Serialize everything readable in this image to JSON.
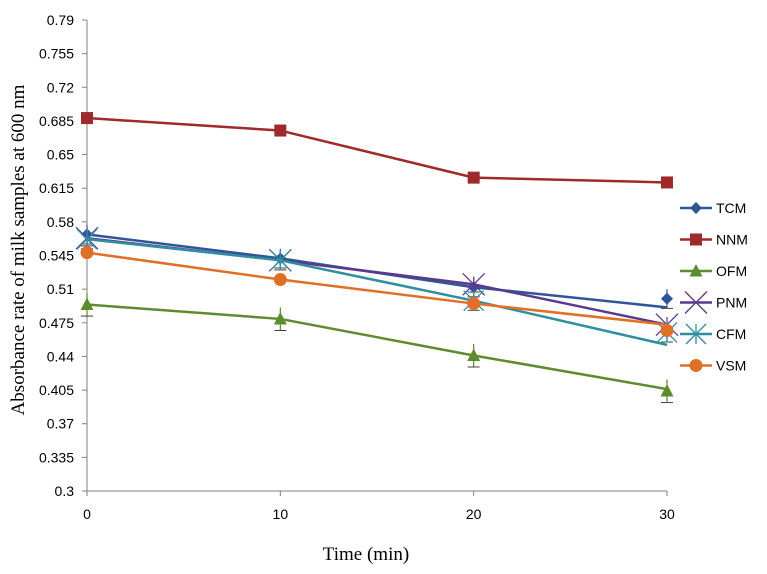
{
  "chart_data": {
    "type": "line",
    "xlabel": "Time (min)",
    "ylabel": "Absorbance rate of milk samples at 600 nm",
    "xlim": [
      0,
      30
    ],
    "ylim": [
      0.3,
      0.79
    ],
    "xticks": [
      "0",
      "10",
      "20",
      "30"
    ],
    "yticks": [
      "0.3",
      "0.335",
      "0.37",
      "0.405",
      "0.44",
      "0.475",
      "0.51",
      "0.545",
      "0.58",
      "0.615",
      "0.65",
      "0.685",
      "0.72",
      "0.755",
      "0.79"
    ],
    "grid": false,
    "legend_position": "right",
    "series": [
      {
        "name": "TCM",
        "color": "#2F5597",
        "marker": "diamond",
        "x": [
          0,
          10,
          20,
          30
        ],
        "y": [
          0.567,
          0.542,
          0.512,
          0.5
        ],
        "end": 0.491,
        "err": 0.01
      },
      {
        "name": "NNM",
        "color": "#9E2A2B",
        "marker": "square",
        "x": [
          0,
          10,
          20,
          30
        ],
        "y": [
          0.688,
          0.675,
          0.626,
          0.621
        ],
        "end": 0.621,
        "err": 0
      },
      {
        "name": "OFM",
        "color": "#5E8B2E",
        "marker": "triangle",
        "x": [
          0,
          10,
          20,
          30
        ],
        "y": [
          0.494,
          0.479,
          0.441,
          0.404
        ],
        "end": 0.406,
        "err": 0.012
      },
      {
        "name": "PNM",
        "color": "#5B3A8C",
        "marker": "x",
        "x": [
          0,
          10,
          20,
          30
        ],
        "y": [
          0.563,
          0.54,
          0.515,
          0.473
        ],
        "end": 0.473,
        "err": 0.008
      },
      {
        "name": "CFM",
        "color": "#2E8FA0",
        "marker": "star",
        "x": [
          0,
          10,
          20,
          30
        ],
        "y": [
          0.562,
          0.54,
          0.498,
          0.465
        ],
        "end": 0.452,
        "err": 0.01
      },
      {
        "name": "VSM",
        "color": "#E07028",
        "marker": "circle",
        "x": [
          0,
          10,
          20,
          30
        ],
        "y": [
          0.548,
          0.52,
          0.495,
          0.467
        ],
        "end": 0.473,
        "err": 0
      }
    ]
  }
}
